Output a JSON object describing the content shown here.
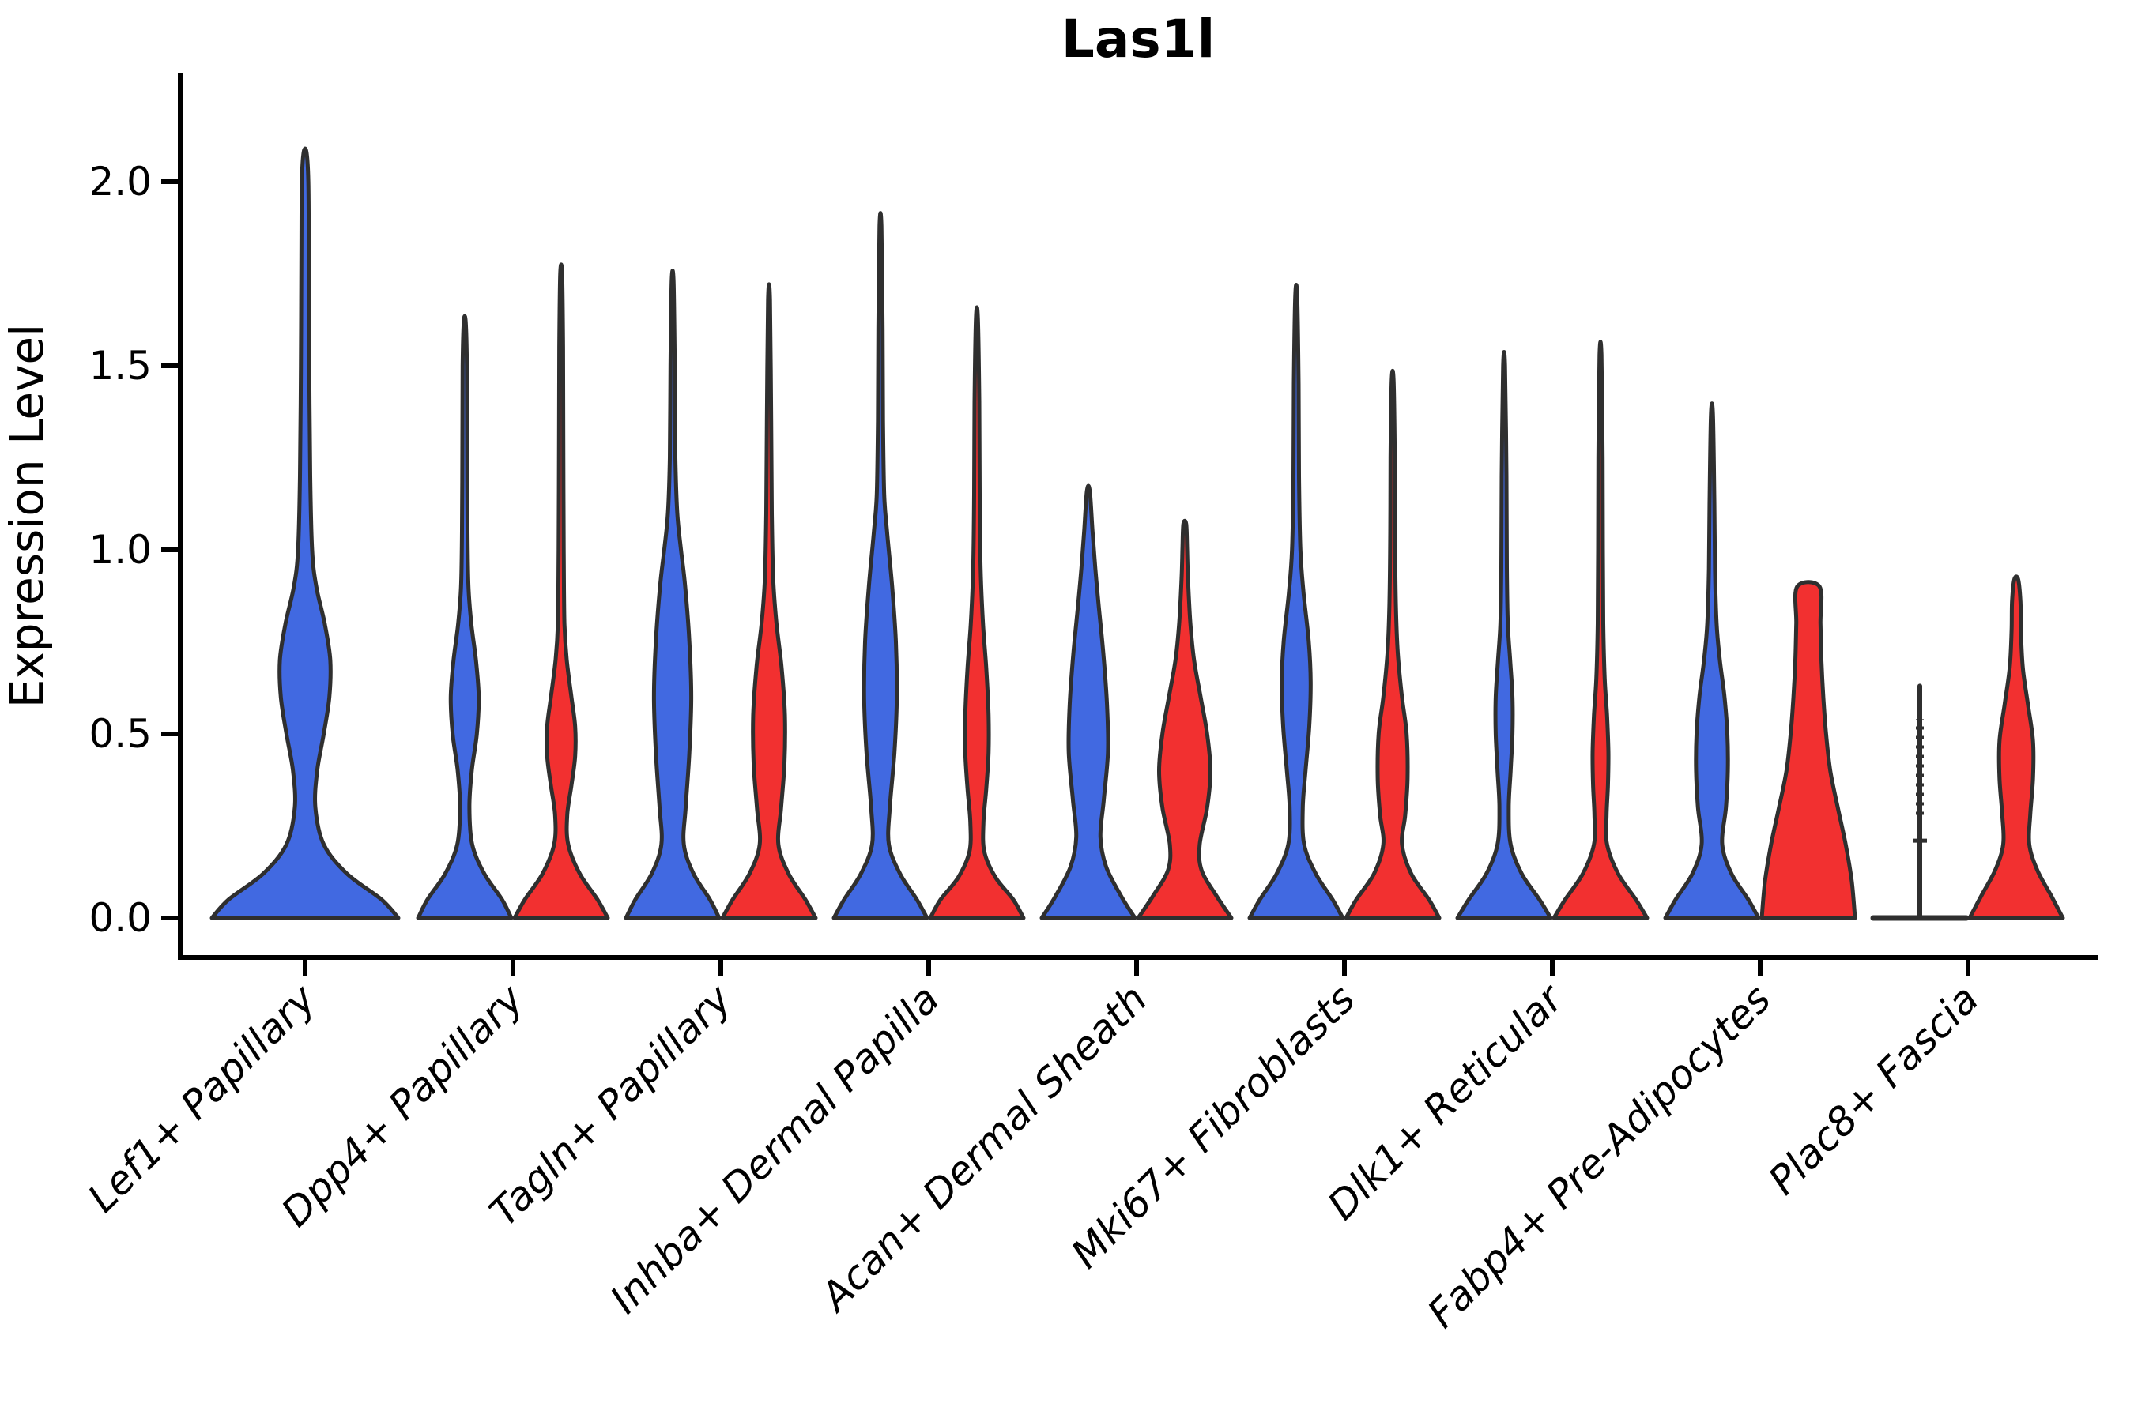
{
  "chart_data": {
    "type": "violin",
    "title": "Las1l",
    "ylabel": "Expression Level",
    "xlabel": "",
    "y_tick_labels": [
      "0.0",
      "0.5",
      "1.0",
      "1.5",
      "2.0"
    ],
    "y_tick_values": [
      0.0,
      0.5,
      1.0,
      1.5,
      2.0
    ],
    "ylim": [
      0,
      2.2
    ],
    "grid": false,
    "legend": "none",
    "x_label_rotation_deg": 45,
    "colors": {
      "blue": "#4169E1",
      "red": "#F23030",
      "outline": "#2F2F2F",
      "axis": "#000000"
    },
    "categories": [
      "Lef1+ Papillary",
      "Dpp4+ Papillary",
      "Tagln+ Papillary",
      "Inhba+ Dermal Papilla",
      "Acan+ Dermal Sheath",
      "Mki67+ Fibroblasts",
      "Dlk1+ Reticular",
      "Fabp4+ Pre-Adipocytes",
      "Plac8+ Fascia"
    ],
    "violins": [
      {
        "name": "lef1-papillary-blue",
        "category_index": 0,
        "side": "full",
        "color_key": "blue",
        "max": 2.08,
        "profile": [
          [
            0,
            1
          ],
          [
            0.05,
            0.82
          ],
          [
            0.12,
            0.45
          ],
          [
            0.2,
            0.2
          ],
          [
            0.3,
            0.11
          ],
          [
            0.4,
            0.13
          ],
          [
            0.5,
            0.2
          ],
          [
            0.6,
            0.26
          ],
          [
            0.7,
            0.27
          ],
          [
            0.8,
            0.21
          ],
          [
            0.9,
            0.12
          ],
          [
            1.0,
            0.075
          ],
          [
            1.2,
            0.055
          ],
          [
            1.5,
            0.045
          ],
          [
            1.8,
            0.04
          ],
          [
            2.0,
            0.035
          ],
          [
            2.08,
            0.015
          ]
        ]
      },
      {
        "name": "dpp4-papillary-blue",
        "category_index": 1,
        "side": "left",
        "color_key": "blue",
        "max": 1.62,
        "profile": [
          [
            0,
            1
          ],
          [
            0.05,
            0.8
          ],
          [
            0.12,
            0.42
          ],
          [
            0.2,
            0.16
          ],
          [
            0.3,
            0.1
          ],
          [
            0.4,
            0.15
          ],
          [
            0.5,
            0.26
          ],
          [
            0.6,
            0.3
          ],
          [
            0.7,
            0.24
          ],
          [
            0.8,
            0.14
          ],
          [
            0.9,
            0.08
          ],
          [
            1.05,
            0.06
          ],
          [
            1.3,
            0.05
          ],
          [
            1.5,
            0.045
          ],
          [
            1.62,
            0.02
          ]
        ]
      },
      {
        "name": "dpp4-papillary-red",
        "category_index": 1,
        "side": "right",
        "color_key": "red",
        "max": 1.75,
        "profile": [
          [
            0,
            1
          ],
          [
            0.05,
            0.78
          ],
          [
            0.12,
            0.4
          ],
          [
            0.2,
            0.15
          ],
          [
            0.28,
            0.13
          ],
          [
            0.36,
            0.22
          ],
          [
            0.44,
            0.3
          ],
          [
            0.52,
            0.3
          ],
          [
            0.6,
            0.22
          ],
          [
            0.7,
            0.12
          ],
          [
            0.8,
            0.07
          ],
          [
            1.0,
            0.055
          ],
          [
            1.3,
            0.045
          ],
          [
            1.55,
            0.04
          ],
          [
            1.75,
            0.02
          ]
        ]
      },
      {
        "name": "tagln-papillary-blue",
        "category_index": 2,
        "side": "left",
        "color_key": "blue",
        "max": 1.73,
        "profile": [
          [
            0,
            1
          ],
          [
            0.05,
            0.8
          ],
          [
            0.12,
            0.45
          ],
          [
            0.2,
            0.24
          ],
          [
            0.3,
            0.28
          ],
          [
            0.45,
            0.36
          ],
          [
            0.6,
            0.4
          ],
          [
            0.75,
            0.36
          ],
          [
            0.9,
            0.27
          ],
          [
            1.0,
            0.18
          ],
          [
            1.1,
            0.1
          ],
          [
            1.25,
            0.06
          ],
          [
            1.5,
            0.045
          ],
          [
            1.73,
            0.02
          ]
        ]
      },
      {
        "name": "tagln-papillary-red",
        "category_index": 2,
        "side": "right",
        "color_key": "red",
        "max": 1.68,
        "profile": [
          [
            0,
            1
          ],
          [
            0.05,
            0.78
          ],
          [
            0.12,
            0.42
          ],
          [
            0.2,
            0.2
          ],
          [
            0.3,
            0.26
          ],
          [
            0.42,
            0.33
          ],
          [
            0.55,
            0.34
          ],
          [
            0.68,
            0.27
          ],
          [
            0.8,
            0.16
          ],
          [
            0.92,
            0.09
          ],
          [
            1.1,
            0.06
          ],
          [
            1.35,
            0.045
          ],
          [
            1.68,
            0.02
          ]
        ]
      },
      {
        "name": "inhba-dermal-papilla-blue",
        "category_index": 3,
        "side": "left",
        "color_key": "blue",
        "max": 1.88,
        "profile": [
          [
            0,
            1
          ],
          [
            0.05,
            0.78
          ],
          [
            0.12,
            0.42
          ],
          [
            0.2,
            0.18
          ],
          [
            0.3,
            0.2
          ],
          [
            0.45,
            0.3
          ],
          [
            0.6,
            0.35
          ],
          [
            0.75,
            0.33
          ],
          [
            0.9,
            0.25
          ],
          [
            1.05,
            0.14
          ],
          [
            1.15,
            0.08
          ],
          [
            1.35,
            0.055
          ],
          [
            1.6,
            0.045
          ],
          [
            1.88,
            0.02
          ]
        ]
      },
      {
        "name": "inhba-dermal-papilla-red",
        "category_index": 3,
        "side": "right",
        "color_key": "red",
        "max": 1.63,
        "profile": [
          [
            0,
            1
          ],
          [
            0.05,
            0.78
          ],
          [
            0.11,
            0.4
          ],
          [
            0.18,
            0.16
          ],
          [
            0.26,
            0.14
          ],
          [
            0.35,
            0.2
          ],
          [
            0.45,
            0.25
          ],
          [
            0.55,
            0.25
          ],
          [
            0.68,
            0.2
          ],
          [
            0.8,
            0.13
          ],
          [
            0.95,
            0.08
          ],
          [
            1.15,
            0.06
          ],
          [
            1.4,
            0.05
          ],
          [
            1.63,
            0.02
          ]
        ]
      },
      {
        "name": "acan-dermal-sheath-blue",
        "category_index": 4,
        "side": "left",
        "color_key": "blue",
        "max": 1.16,
        "profile": [
          [
            0,
            1
          ],
          [
            0.06,
            0.7
          ],
          [
            0.14,
            0.38
          ],
          [
            0.22,
            0.26
          ],
          [
            0.32,
            0.33
          ],
          [
            0.45,
            0.42
          ],
          [
            0.58,
            0.4
          ],
          [
            0.72,
            0.32
          ],
          [
            0.85,
            0.22
          ],
          [
            0.95,
            0.15
          ],
          [
            1.05,
            0.09
          ],
          [
            1.16,
            0.03
          ]
        ]
      },
      {
        "name": "acan-dermal-sheath-red",
        "category_index": 4,
        "side": "right",
        "color_key": "red",
        "max": 1.07,
        "profile": [
          [
            0,
            1
          ],
          [
            0.06,
            0.68
          ],
          [
            0.13,
            0.36
          ],
          [
            0.2,
            0.32
          ],
          [
            0.3,
            0.48
          ],
          [
            0.4,
            0.55
          ],
          [
            0.5,
            0.48
          ],
          [
            0.6,
            0.34
          ],
          [
            0.7,
            0.2
          ],
          [
            0.8,
            0.12
          ],
          [
            0.92,
            0.07
          ],
          [
            1.0,
            0.05
          ],
          [
            1.07,
            0.03
          ]
        ]
      },
      {
        "name": "mki67-fibroblasts-blue",
        "category_index": 5,
        "side": "left",
        "color_key": "blue",
        "max": 1.69,
        "profile": [
          [
            0,
            1
          ],
          [
            0.05,
            0.78
          ],
          [
            0.12,
            0.42
          ],
          [
            0.2,
            0.17
          ],
          [
            0.3,
            0.14
          ],
          [
            0.4,
            0.2
          ],
          [
            0.52,
            0.28
          ],
          [
            0.64,
            0.31
          ],
          [
            0.75,
            0.27
          ],
          [
            0.88,
            0.16
          ],
          [
            1.0,
            0.09
          ],
          [
            1.2,
            0.06
          ],
          [
            1.45,
            0.05
          ],
          [
            1.69,
            0.02
          ]
        ]
      },
      {
        "name": "mki67-fibroblasts-red",
        "category_index": 5,
        "side": "right",
        "color_key": "red",
        "max": 1.46,
        "profile": [
          [
            0,
            1
          ],
          [
            0.05,
            0.78
          ],
          [
            0.12,
            0.4
          ],
          [
            0.2,
            0.2
          ],
          [
            0.28,
            0.27
          ],
          [
            0.38,
            0.32
          ],
          [
            0.5,
            0.3
          ],
          [
            0.6,
            0.2
          ],
          [
            0.72,
            0.11
          ],
          [
            0.85,
            0.07
          ],
          [
            1.05,
            0.05
          ],
          [
            1.25,
            0.045
          ],
          [
            1.46,
            0.02
          ]
        ]
      },
      {
        "name": "dlk1-reticular-blue",
        "category_index": 6,
        "side": "left",
        "color_key": "blue",
        "max": 1.5,
        "profile": [
          [
            0,
            1
          ],
          [
            0.05,
            0.76
          ],
          [
            0.12,
            0.38
          ],
          [
            0.2,
            0.14
          ],
          [
            0.3,
            0.1
          ],
          [
            0.4,
            0.14
          ],
          [
            0.5,
            0.18
          ],
          [
            0.6,
            0.18
          ],
          [
            0.7,
            0.13
          ],
          [
            0.8,
            0.08
          ],
          [
            0.95,
            0.06
          ],
          [
            1.2,
            0.05
          ],
          [
            1.5,
            0.02
          ]
        ]
      },
      {
        "name": "dlk1-reticular-red",
        "category_index": 6,
        "side": "right",
        "color_key": "red",
        "max": 1.53,
        "profile": [
          [
            0,
            1
          ],
          [
            0.05,
            0.76
          ],
          [
            0.12,
            0.38
          ],
          [
            0.2,
            0.14
          ],
          [
            0.28,
            0.13
          ],
          [
            0.36,
            0.16
          ],
          [
            0.45,
            0.17
          ],
          [
            0.55,
            0.14
          ],
          [
            0.65,
            0.09
          ],
          [
            0.8,
            0.06
          ],
          [
            1.0,
            0.05
          ],
          [
            1.25,
            0.045
          ],
          [
            1.53,
            0.02
          ]
        ]
      },
      {
        "name": "fabp4-pre-adipocytes-blue",
        "category_index": 7,
        "side": "left",
        "color_key": "blue",
        "max": 1.37,
        "profile": [
          [
            0,
            1
          ],
          [
            0.05,
            0.78
          ],
          [
            0.12,
            0.42
          ],
          [
            0.2,
            0.22
          ],
          [
            0.3,
            0.3
          ],
          [
            0.4,
            0.34
          ],
          [
            0.5,
            0.33
          ],
          [
            0.6,
            0.27
          ],
          [
            0.7,
            0.17
          ],
          [
            0.8,
            0.1
          ],
          [
            0.95,
            0.065
          ],
          [
            1.15,
            0.05
          ],
          [
            1.37,
            0.02
          ]
        ]
      },
      {
        "name": "fabp4-pre-adipocytes-red",
        "category_index": 7,
        "side": "right",
        "color_key": "red",
        "max": 0.9,
        "flat_top": true,
        "profile": [
          [
            0,
            1
          ],
          [
            0.1,
            0.93
          ],
          [
            0.2,
            0.8
          ],
          [
            0.3,
            0.63
          ],
          [
            0.4,
            0.47
          ],
          [
            0.5,
            0.38
          ],
          [
            0.6,
            0.32
          ],
          [
            0.7,
            0.28
          ],
          [
            0.8,
            0.26
          ],
          [
            0.9,
            0.24
          ]
        ]
      },
      {
        "name": "plac8-fascia-red",
        "category_index": 8,
        "side": "right",
        "color_key": "red",
        "max": 0.92,
        "profile": [
          [
            0,
            1
          ],
          [
            0.06,
            0.75
          ],
          [
            0.13,
            0.45
          ],
          [
            0.2,
            0.28
          ],
          [
            0.28,
            0.3
          ],
          [
            0.38,
            0.36
          ],
          [
            0.48,
            0.36
          ],
          [
            0.58,
            0.25
          ],
          [
            0.68,
            0.14
          ],
          [
            0.78,
            0.1
          ],
          [
            0.86,
            0.09
          ],
          [
            0.92,
            0.04
          ]
        ]
      }
    ],
    "sticks": [
      {
        "name": "plac8-fascia-blue",
        "category_index": 8,
        "side": "left",
        "color_key": "outline",
        "max": 0.63,
        "dot_range": [
          0.28,
          0.54
        ]
      }
    ]
  }
}
